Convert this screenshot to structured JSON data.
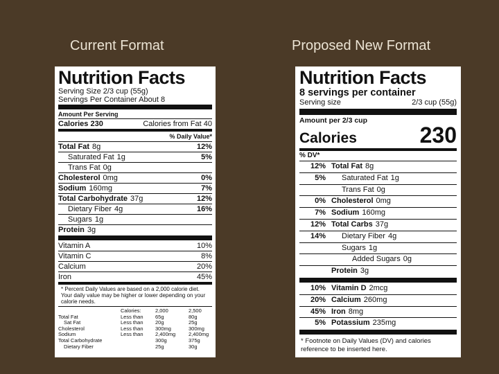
{
  "headings": {
    "current": "Current Format",
    "proposed": "Proposed New Format"
  },
  "current_label": {
    "title": "Nutrition Facts",
    "serving_size": "Serving Size 2/3 cup (55g)",
    "servings_per_container": "Servings Per Container About 8",
    "amount_per_serving": "Amount Per Serving",
    "calories": "Calories 230",
    "calories_from_fat": "Calories from Fat 40",
    "daily_value_heading": "% Daily Value*",
    "nutrients": [
      {
        "name": "Total Fat",
        "amount": "8g",
        "dv": "12%",
        "sub": [
          {
            "name": "Saturated Fat",
            "amount": "1g",
            "dv": "5%"
          },
          {
            "name": "Trans Fat",
            "amount": "0g"
          }
        ]
      },
      {
        "name": "Cholesterol",
        "amount": "0mg",
        "dv": "0%"
      },
      {
        "name": "Sodium",
        "amount": "160mg",
        "dv": "7%"
      },
      {
        "name": "Total Carbohydrate",
        "amount": "37g",
        "dv": "12%",
        "sub": [
          {
            "name": "Dietary Fiber",
            "amount": "4g",
            "dv": "16%"
          },
          {
            "name": "Sugars",
            "amount": "1g"
          }
        ]
      },
      {
        "name": "Protein",
        "amount": "3g"
      }
    ],
    "vitamins": [
      {
        "name": "Vitamin A",
        "dv": "10%"
      },
      {
        "name": "Vitamin C",
        "dv": "8%"
      },
      {
        "name": "Calcium",
        "dv": "20%"
      },
      {
        "name": "Iron",
        "dv": "45%"
      }
    ],
    "footnote": "* Percent Daily Values are based on a 2,000 calorie diet. Your daily value may be higher or lower depending on your calorie needs.",
    "reference_table": {
      "header": {
        "calories": "Calories:",
        "cols": [
          "2,000",
          "2,500"
        ]
      },
      "rows": [
        {
          "name": "Total Fat",
          "limit": "Less than",
          "cols": [
            "65g",
            "80g"
          ],
          "sub": [
            {
              "name": "Sat Fat",
              "limit": "Less than",
              "cols": [
                "20g",
                "25g"
              ]
            }
          ]
        },
        {
          "name": "Cholesterol",
          "limit": "Less than",
          "cols": [
            "300mg",
            "300mg"
          ]
        },
        {
          "name": "Sodium",
          "limit": "Less than",
          "cols": [
            "2,400mg",
            "2,400mg"
          ]
        },
        {
          "name": "Total Carbohydrate",
          "cols": [
            "300g",
            "375g"
          ],
          "sub": [
            {
              "name": "Dietary Fiber",
              "cols": [
                "25g",
                "30g"
              ]
            }
          ]
        }
      ]
    }
  },
  "proposed_label": {
    "title": "Nutrition Facts",
    "servings_per_container": "8 servings per container",
    "serving_size_label": "Serving size",
    "serving_size": "2/3 cup (55g)",
    "amount_per": "Amount per 2/3 cup",
    "calories_label": "Calories",
    "calories": "230",
    "dv_heading": "% DV*",
    "nutrients": [
      {
        "dv": "12%",
        "name": "Total Fat",
        "amount": "8g",
        "sub": [
          {
            "dv": "5%",
            "name": "Saturated Fat",
            "amount": "1g"
          },
          {
            "name": "Trans Fat",
            "amount": "0g"
          }
        ]
      },
      {
        "dv": "0%",
        "name": "Cholesterol",
        "amount": "0mg"
      },
      {
        "dv": "7%",
        "name": "Sodium",
        "amount": "160mg"
      },
      {
        "dv": "12%",
        "name": "Total Carbs",
        "amount": "37g",
        "sub": [
          {
            "dv": "14%",
            "name": "Dietary Fiber",
            "amount": "4g"
          },
          {
            "name": "Sugars",
            "amount": "1g",
            "sub": [
              {
                "name": "Added Sugars",
                "amount": "0g"
              }
            ]
          }
        ]
      },
      {
        "name": "Protein",
        "amount": "3g"
      }
    ],
    "vitamins": [
      {
        "dv": "10%",
        "name": "Vitamin D",
        "amount": "2mcg"
      },
      {
        "dv": "20%",
        "name": "Calcium",
        "amount": "260mg"
      },
      {
        "dv": "45%",
        "name": "Iron",
        "amount": "8mg"
      },
      {
        "dv": "5%",
        "name": "Potassium",
        "amount": "235mg"
      }
    ],
    "footnote": "* Footnote on Daily Values (DV) and calories reference to be inserted here."
  }
}
